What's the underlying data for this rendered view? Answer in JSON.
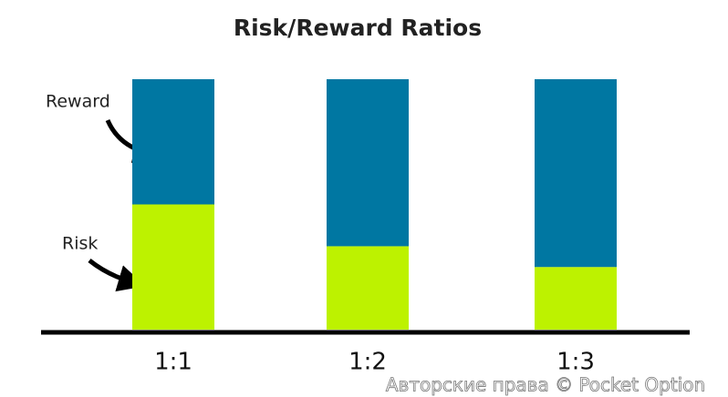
{
  "chart_data": {
    "type": "stacked_bar",
    "title": "Risk/Reward Ratios",
    "categories": [
      "1:1",
      "1:2",
      "1:3"
    ],
    "series": [
      {
        "name": "Risk",
        "color": "#bdf200",
        "values": [
          50,
          33.3,
          25
        ]
      },
      {
        "name": "Reward",
        "color": "#0077a2",
        "values": [
          50,
          66.7,
          75
        ]
      }
    ],
    "ylim": [
      0,
      100
    ],
    "watermark": "Авторские права © Pocket Option"
  }
}
